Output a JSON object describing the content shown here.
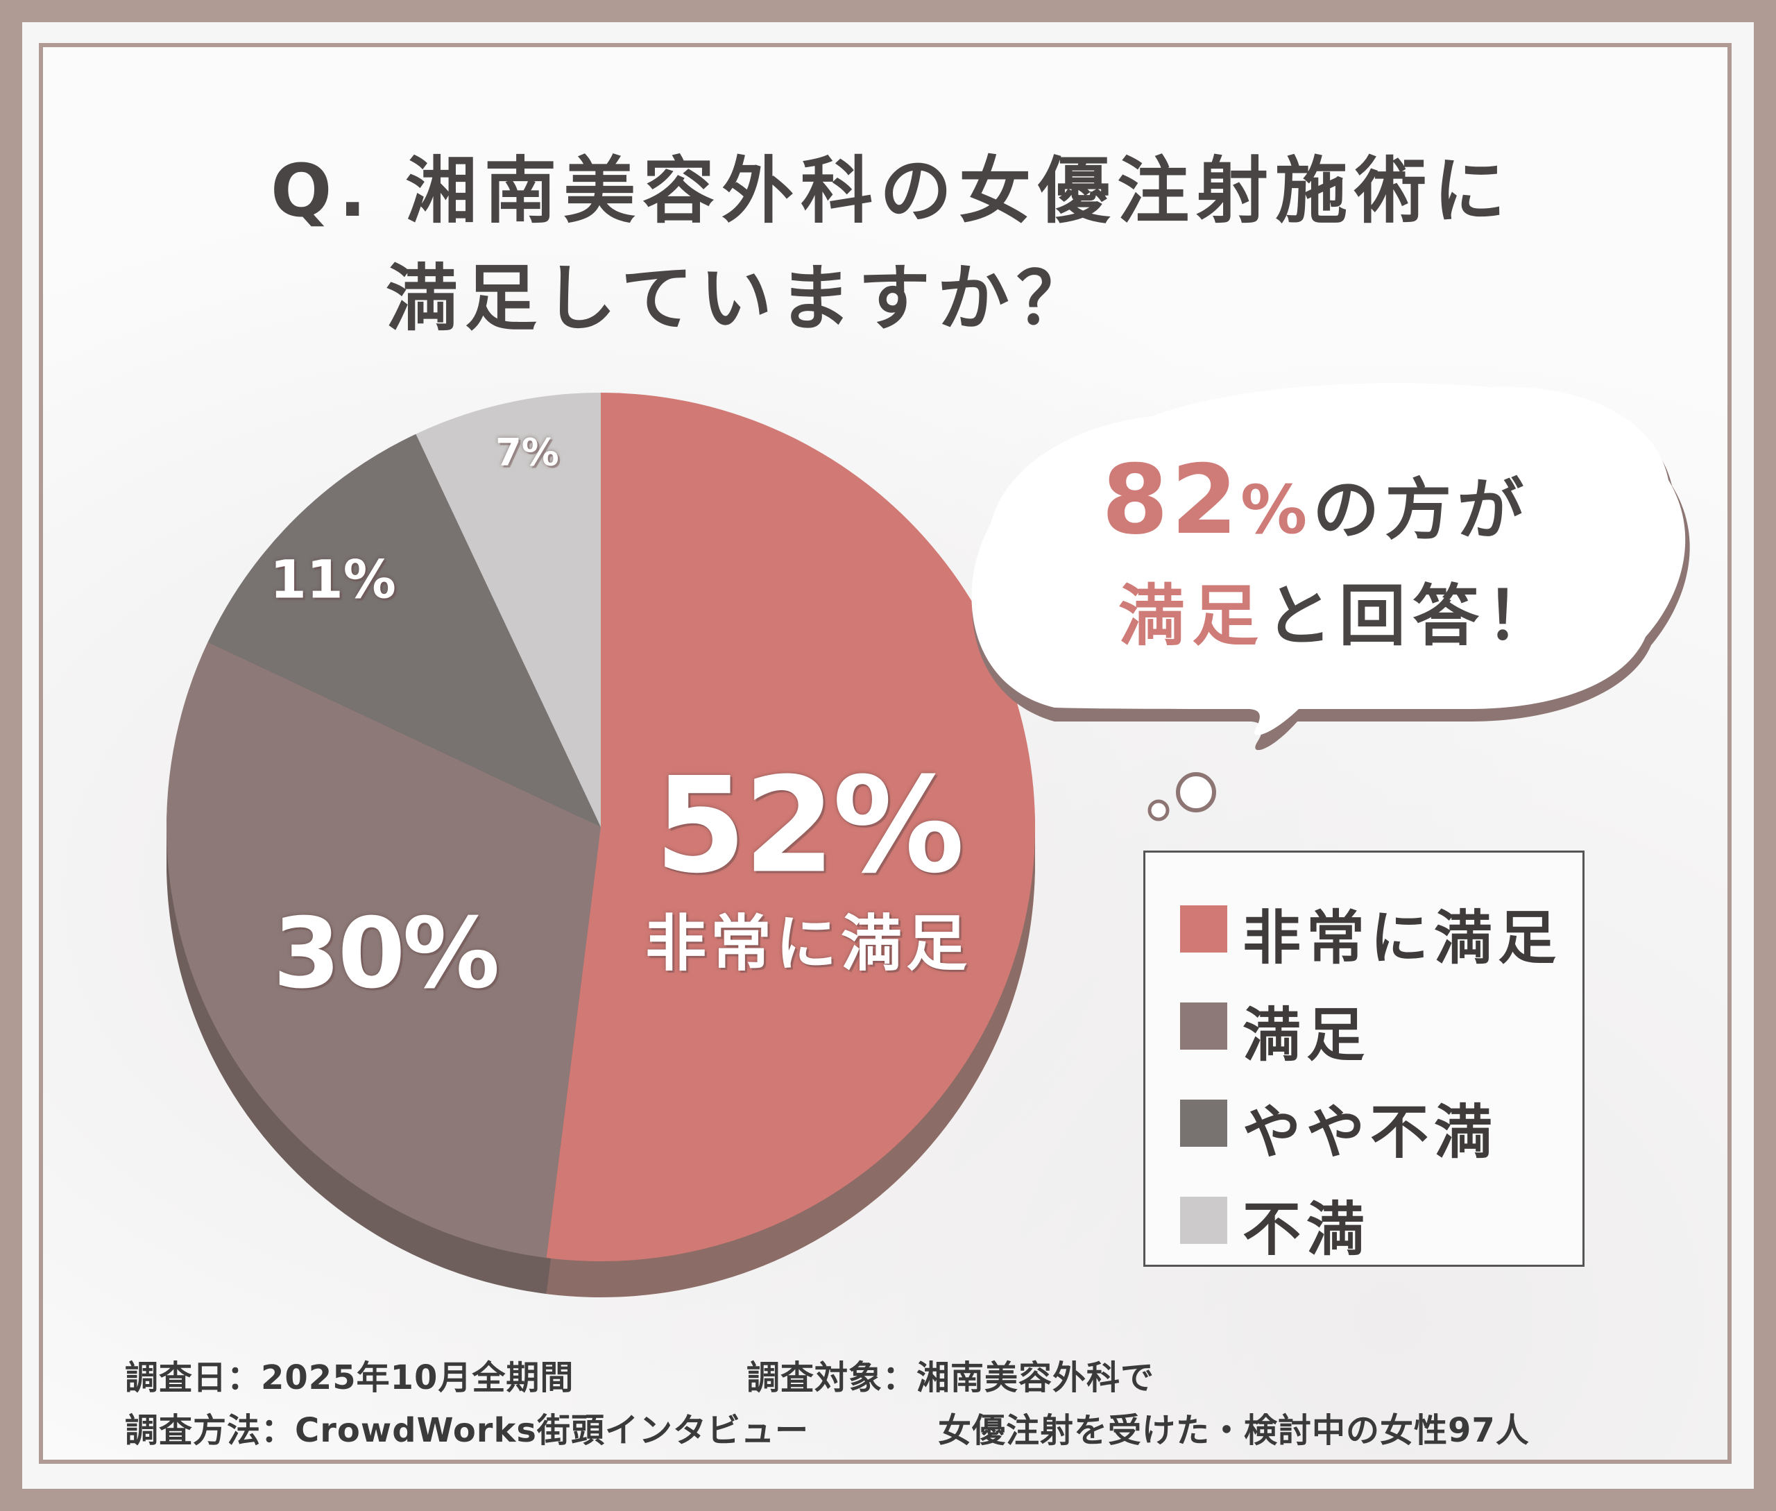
{
  "title": {
    "line1": "Q. 湘南美容外科の女優注射施術に",
    "line2": "満足していますか？"
  },
  "chart_data": {
    "type": "pie",
    "categories": [
      "非常に満足",
      "満足",
      "やや不満",
      "不満"
    ],
    "values": [
      52,
      30,
      11,
      7
    ],
    "value_labels": [
      "52%",
      "30%",
      "11%",
      "7%"
    ],
    "center_label": "非常に満足",
    "colors": [
      "#d17a75",
      "#8d7a78",
      "#787271",
      "#cccaca"
    ],
    "side_colors": [
      "#8c6c66",
      "#6f5f5c",
      "#5c5756",
      "#a8a5a5"
    ],
    "legend_position": "right"
  },
  "bubble": {
    "percent": "82",
    "percent_sign": "%",
    "line1_rest": "の方が",
    "line2_accent": "満足",
    "line2_rest": "と回答！"
  },
  "legend": {
    "items": [
      {
        "label": "非常に満足",
        "color": "#d17a75"
      },
      {
        "label": "満足",
        "color": "#8d7a78"
      },
      {
        "label": "やや不満",
        "color": "#787271"
      },
      {
        "label": "不満",
        "color": "#cccaca"
      }
    ]
  },
  "footer": {
    "date": "調査日：2025年10月全期間",
    "method": "調査方法：CrowdWorks街頭インタビュー",
    "target_line1": "調査対象：湘南美容外科で",
    "target_line2": "女優注射を受けた・検討中の女性97人"
  }
}
